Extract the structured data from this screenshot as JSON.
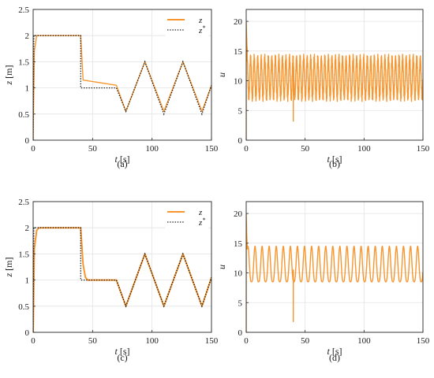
{
  "figure": {
    "colors": {
      "series": "#F7962F",
      "reference": "#1a1a1a",
      "grid": "#e3e3e3",
      "axis": "#262626"
    },
    "panels": [
      {
        "id": "a",
        "caption": "(a)",
        "chart_data": {
          "type": "line",
          "xlabel": "t [s]",
          "ylabel": "z [m]",
          "xlim": [
            0,
            150
          ],
          "ylim": [
            0,
            2.5
          ],
          "xticks": [
            "0",
            "50",
            "100",
            "150"
          ],
          "yticks": [
            "0",
            "0.5",
            "1",
            "1.5",
            "2",
            "2.5"
          ],
          "grid": true,
          "legend": {
            "position": "top-right",
            "entries": [
              "z",
              "z*"
            ]
          },
          "series": [
            {
              "name": "z",
              "style": "solid",
              "description_points": [
                [
                  0,
                  0
                ],
                [
                  1,
                  1.7
                ],
                [
                  3,
                  2.0
                ],
                [
                  40,
                  2.0
                ],
                [
                  42,
                  1.15
                ],
                [
                  70,
                  1.05
                ],
                [
                  78,
                  0.55
                ],
                [
                  94,
                  1.5
                ],
                [
                  110,
                  0.55
                ],
                [
                  126,
                  1.5
                ],
                [
                  142,
                  0.55
                ],
                [
                  150,
                  1.05
                ]
              ],
              "oscillation_amplitude": 0.1
            },
            {
              "name": "z*",
              "style": "dotted",
              "points": [
                [
                  0,
                  0
                ],
                [
                  0.5,
                  2
                ],
                [
                  40,
                  2
                ],
                [
                  40,
                  1
                ],
                [
                  70,
                  1
                ],
                [
                  78,
                  0.55
                ],
                [
                  94,
                  1.5
                ],
                [
                  110,
                  0.5
                ],
                [
                  126,
                  1.5
                ],
                [
                  142,
                  0.5
                ],
                [
                  150,
                  1.05
                ]
              ]
            }
          ]
        }
      },
      {
        "id": "b",
        "caption": "(b)",
        "chart_data": {
          "type": "line",
          "xlabel": "t [s]",
          "ylabel": "u",
          "xlim": [
            0,
            150
          ],
          "ylim": [
            0,
            22
          ],
          "xticks": [
            "0",
            "50",
            "100",
            "150"
          ],
          "yticks": [
            "0",
            "5",
            "10",
            "15",
            "20"
          ],
          "grid": true,
          "series": [
            {
              "name": "",
              "style": "solid",
              "baseline": 10.8,
              "min": 6.5,
              "max": 14.5,
              "period_s": 3.0,
              "spikes": [
                [
                  0,
                  20
                ],
                [
                  40,
                  3.2
                ]
              ]
            }
          ]
        }
      },
      {
        "id": "c",
        "caption": "(c)",
        "chart_data": {
          "type": "line",
          "xlabel": "t [s]",
          "ylabel": "z [m]",
          "xlim": [
            0,
            150
          ],
          "ylim": [
            0,
            2.5
          ],
          "xticks": [
            "0",
            "50",
            "100",
            "150"
          ],
          "yticks": [
            "0",
            "0.5",
            "1",
            "1.5",
            "2",
            "2.5"
          ],
          "grid": true,
          "legend": {
            "position": "top-right",
            "entries": [
              "z",
              "z*"
            ]
          },
          "series": [
            {
              "name": "z",
              "style": "solid",
              "points": [
                [
                  0,
                  0
                ],
                [
                  1,
                  1.6
                ],
                [
                  3,
                  1.95
                ],
                [
                  5,
                  2.0
                ],
                [
                  40,
                  2.0
                ],
                [
                  42,
                  1.3
                ],
                [
                  44,
                  1.05
                ],
                [
                  46,
                  1.0
                ],
                [
                  70,
                  1.0
                ],
                [
                  78,
                  0.5
                ],
                [
                  94,
                  1.5
                ],
                [
                  110,
                  0.5
                ],
                [
                  126,
                  1.5
                ],
                [
                  142,
                  0.5
                ],
                [
                  150,
                  1.05
                ]
              ]
            },
            {
              "name": "z*",
              "style": "dotted",
              "points": [
                [
                  0,
                  0
                ],
                [
                  0.5,
                  2
                ],
                [
                  40,
                  2
                ],
                [
                  40,
                  1
                ],
                [
                  70,
                  1
                ],
                [
                  78,
                  0.5
                ],
                [
                  94,
                  1.5
                ],
                [
                  110,
                  0.5
                ],
                [
                  126,
                  1.5
                ],
                [
                  142,
                  0.5
                ],
                [
                  150,
                  1.05
                ]
              ]
            }
          ]
        }
      },
      {
        "id": "d",
        "caption": "(d)",
        "chart_data": {
          "type": "line",
          "xlabel": "t [s]",
          "ylabel": "u",
          "xlim": [
            0,
            150
          ],
          "ylim": [
            0,
            22
          ],
          "xticks": [
            "0",
            "50",
            "100",
            "150"
          ],
          "yticks": [
            "0",
            "5",
            "10",
            "15",
            "20"
          ],
          "grid": true,
          "series": [
            {
              "name": "",
              "style": "solid",
              "baseline": 10.5,
              "min": 8.5,
              "max": 14.5,
              "period_s": 6.0,
              "spikes": [
                [
                  0,
                  20
                ],
                [
                  40,
                  1.8
                ]
              ]
            }
          ]
        }
      }
    ]
  }
}
